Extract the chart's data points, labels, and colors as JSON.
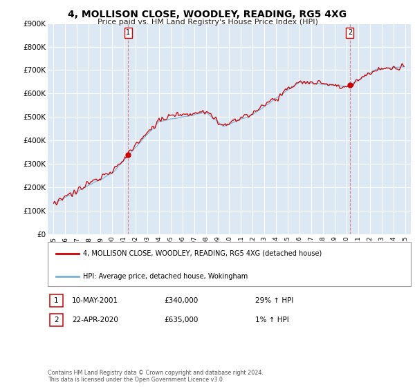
{
  "title": "4, MOLLISON CLOSE, WOODLEY, READING, RG5 4XG",
  "subtitle": "Price paid vs. HM Land Registry's House Price Index (HPI)",
  "bg_color": "#ffffff",
  "plot_bg_color": "#dce9f5",
  "grid_color": "#ffffff",
  "hpi_color": "#7aafd4",
  "price_color": "#cc0000",
  "vline_color": "#dd6666",
  "ylim_min": 0,
  "ylim_max": 900000,
  "xlim_min": 1994.5,
  "xlim_max": 2025.5,
  "yticks": [
    0,
    100000,
    200000,
    300000,
    400000,
    500000,
    600000,
    700000,
    800000,
    900000
  ],
  "ytick_labels": [
    "£0",
    "£100K",
    "£200K",
    "£300K",
    "£400K",
    "£500K",
    "£600K",
    "£700K",
    "£800K",
    "£900K"
  ],
  "xtick_years": [
    1995,
    1996,
    1997,
    1998,
    1999,
    2000,
    2001,
    2002,
    2003,
    2004,
    2005,
    2006,
    2007,
    2008,
    2009,
    2010,
    2011,
    2012,
    2013,
    2014,
    2015,
    2016,
    2017,
    2018,
    2019,
    2020,
    2021,
    2022,
    2023,
    2024,
    2025
  ],
  "sale1_x": 2001.37,
  "sale1_y": 340000,
  "sale2_x": 2020.3,
  "sale2_y": 635000,
  "legend_line1": "4, MOLLISON CLOSE, WOODLEY, READING, RG5 4XG (detached house)",
  "legend_line2": "HPI: Average price, detached house, Wokingham",
  "note1_label": "1",
  "note1_date": "10-MAY-2001",
  "note1_price": "£340,000",
  "note1_hpi": "29% ↑ HPI",
  "note2_label": "2",
  "note2_date": "22-APR-2020",
  "note2_price": "£635,000",
  "note2_hpi": "1% ↑ HPI",
  "footer": "Contains HM Land Registry data © Crown copyright and database right 2024.\nThis data is licensed under the Open Government Licence v3.0."
}
